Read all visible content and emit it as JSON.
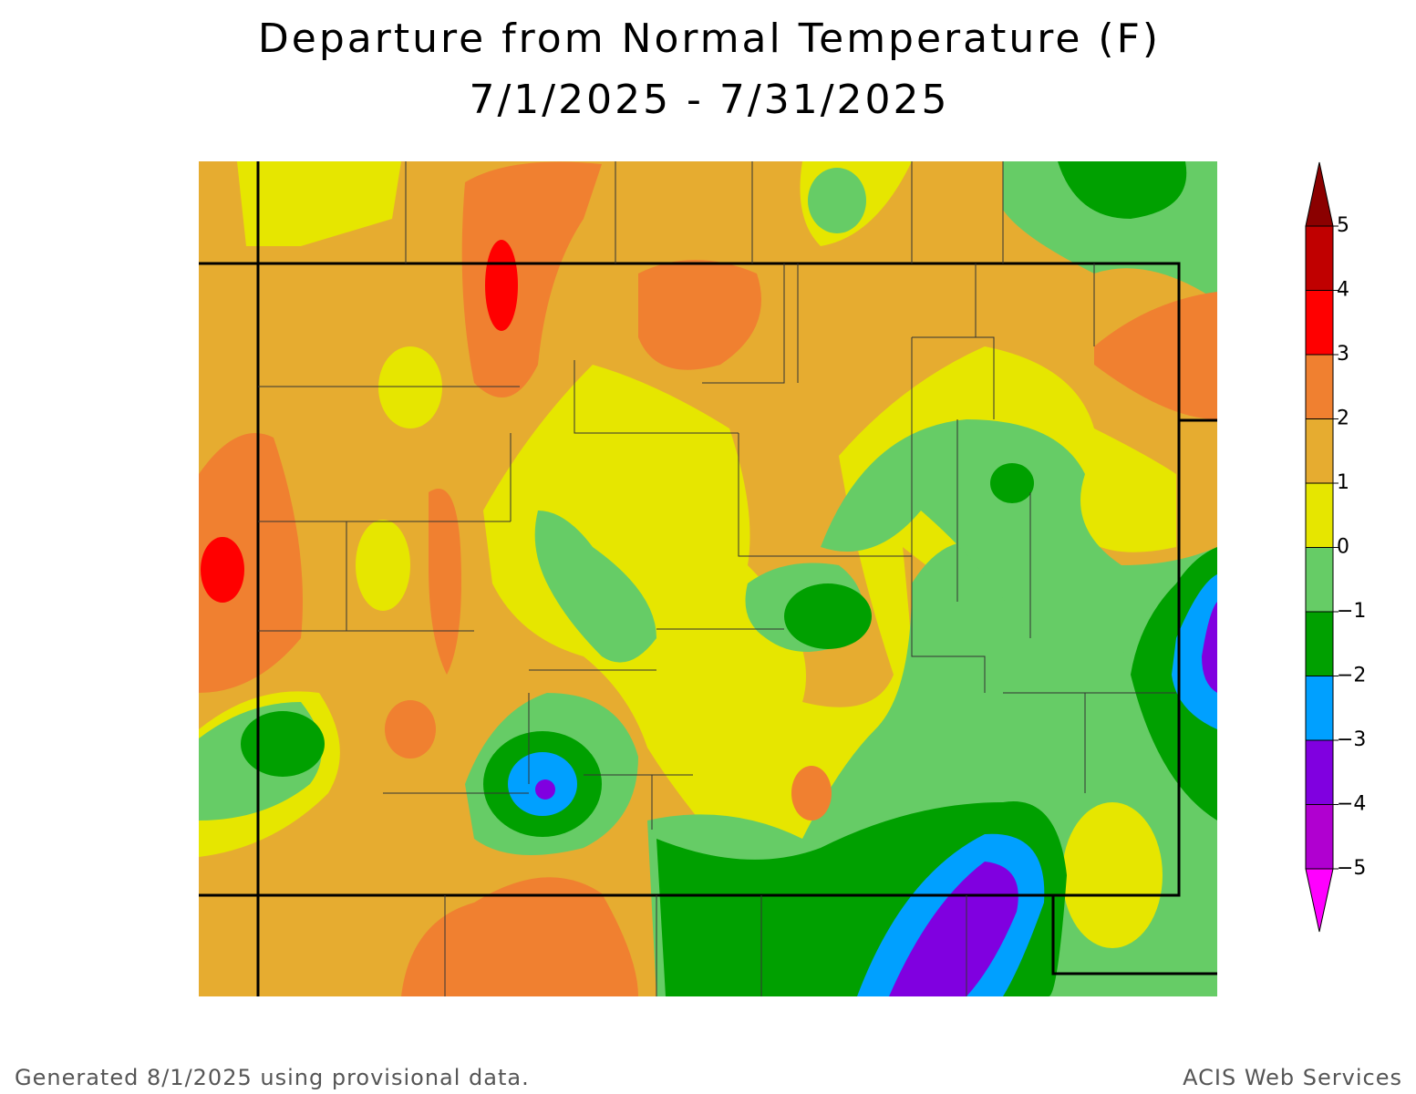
{
  "header": {
    "title": "Departure from Normal Temperature (F)",
    "subtitle": "7/1/2025 - 7/31/2025"
  },
  "legend": {
    "labels": [
      "5",
      "4",
      "3",
      "2",
      "1",
      "0",
      "−1",
      "−2",
      "−3",
      "−4",
      "−5"
    ],
    "colors": [
      "#8b0000",
      "#c00000",
      "#ff0000",
      "#f08030",
      "#e6ac30",
      "#e6e600",
      "#66cc66",
      "#00a000",
      "#00a0ff",
      "#8000e0",
      "#b000d0",
      "#ff00ff"
    ]
  },
  "footer": {
    "left": "Generated 8/1/2025 using provisional data.",
    "right": "ACIS Web Services"
  }
}
